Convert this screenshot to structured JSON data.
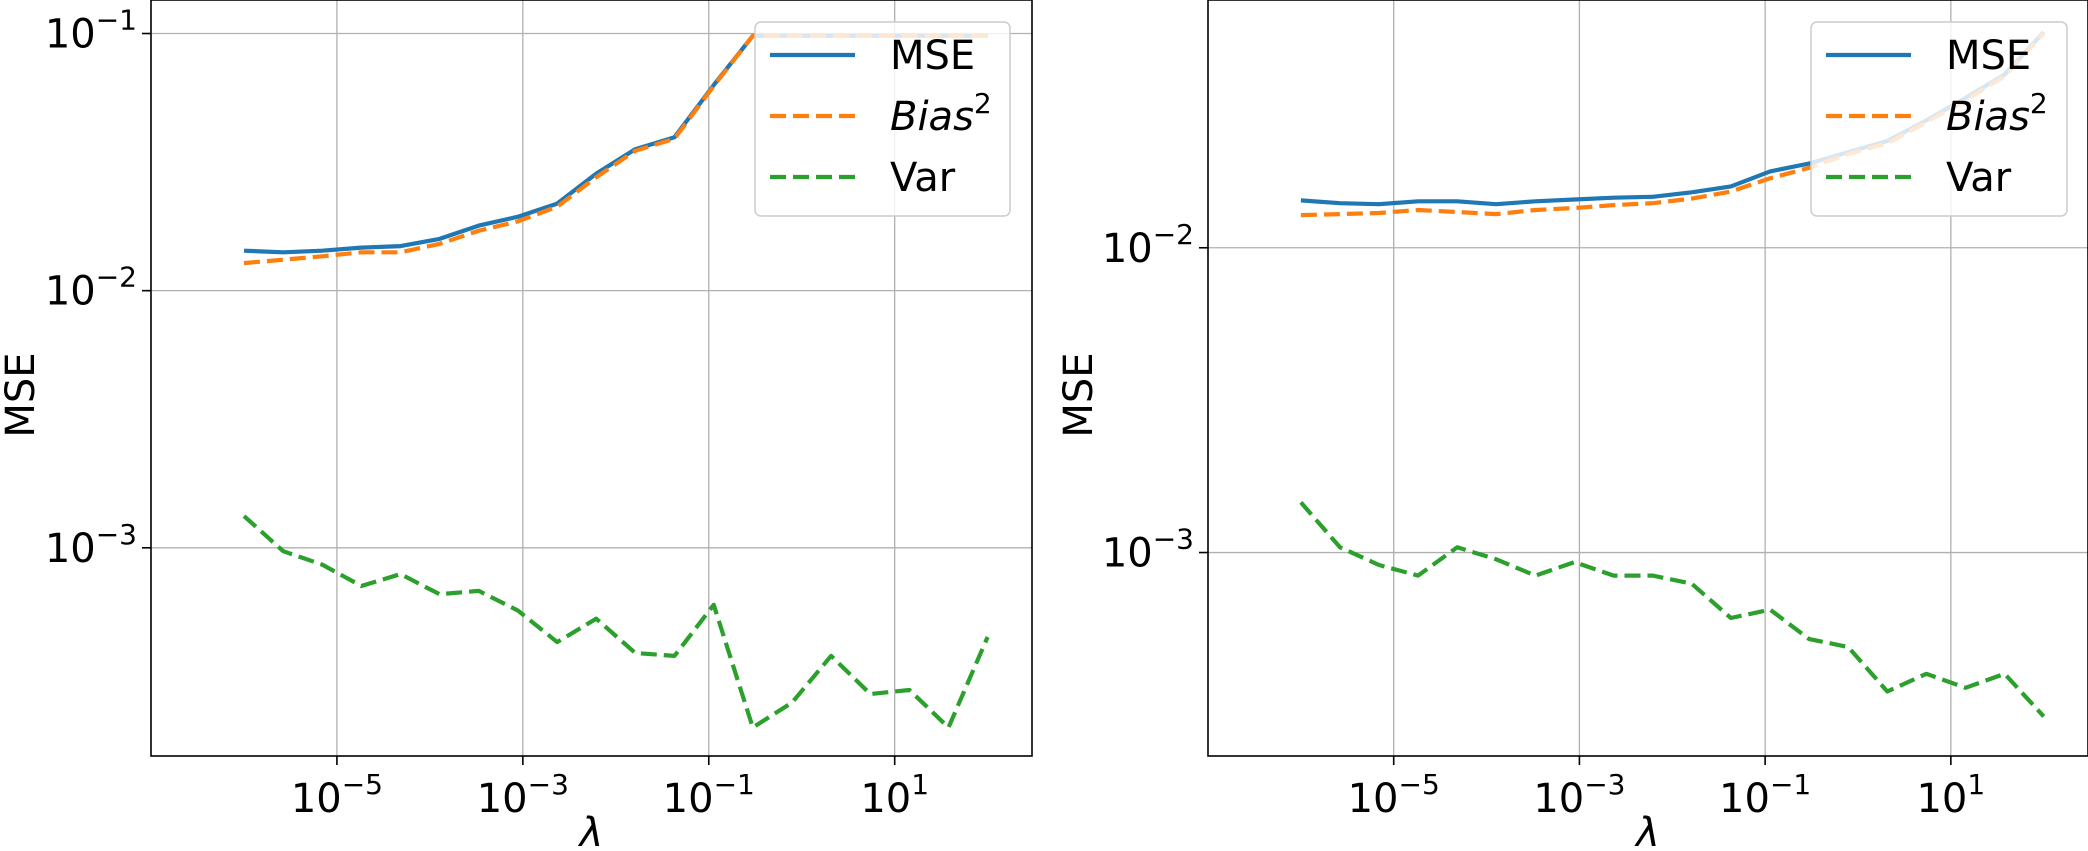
{
  "chart_data": [
    {
      "type": "line",
      "xscale": "log",
      "yscale": "log",
      "xlabel": "λ",
      "ylabel": "MSE",
      "xlim": [
        1e-07,
        300
      ],
      "ylim": [
        0.000155,
        0.135
      ],
      "xticks": [
        {
          "value": 1e-05,
          "base": "10",
          "exp": "−5"
        },
        {
          "value": 0.001,
          "base": "10",
          "exp": "−3"
        },
        {
          "value": 0.1,
          "base": "10",
          "exp": "−1"
        },
        {
          "value": 10,
          "base": "10",
          "exp": "1"
        }
      ],
      "yticks": [
        {
          "value": 0.1,
          "base": "10",
          "exp": "−1"
        },
        {
          "value": 0.01,
          "base": "10",
          "exp": "−2"
        },
        {
          "value": 0.001,
          "base": "10",
          "exp": "−3"
        }
      ],
      "grid": true,
      "legend_position": "upper right",
      "legend": [
        {
          "label": "MSE",
          "sup": ""
        },
        {
          "label": "Bias",
          "sup": "2"
        },
        {
          "label": "Var",
          "sup": ""
        }
      ],
      "x": [
        1e-06,
        2.64e-06,
        6.95e-06,
        1.83e-05,
        4.83e-05,
        0.000127,
        0.000336,
        0.000886,
        0.00234,
        0.00616,
        0.0162,
        0.0428,
        0.113,
        0.298,
        0.785,
        2.07,
        5.46,
        14.4,
        37.9,
        100
      ],
      "series": [
        {
          "name": "MSE",
          "color": "#1f77b4",
          "style": "solid",
          "values": [
            0.0143,
            0.0141,
            0.0143,
            0.0147,
            0.0149,
            0.0159,
            0.0179,
            0.0194,
            0.0218,
            0.0285,
            0.0355,
            0.0395,
            0.063,
            0.098,
            0.098,
            0.098,
            0.098,
            0.098,
            0.098,
            0.098
          ]
        },
        {
          "name": "Bias²",
          "color": "#ff7f0e",
          "style": "dashed",
          "values": [
            0.0128,
            0.0132,
            0.0136,
            0.0141,
            0.0141,
            0.0152,
            0.0171,
            0.0186,
            0.0212,
            0.0276,
            0.035,
            0.039,
            0.0625,
            0.098,
            0.098,
            0.098,
            0.098,
            0.098,
            0.098,
            0.098
          ]
        },
        {
          "name": "Var",
          "color": "#2ca02c",
          "style": "dashed",
          "values": [
            0.00133,
            0.00097,
            0.00086,
            0.00071,
            0.00079,
            0.00066,
            0.00068,
            0.00057,
            0.00043,
            0.00053,
            0.00039,
            0.00038,
            0.0006,
            0.0002,
            0.00025,
            0.00038,
            0.00027,
            0.00028,
            0.0002,
            0.00045
          ]
        }
      ]
    },
    {
      "type": "line",
      "xscale": "log",
      "yscale": "log",
      "xlabel": "λ",
      "ylabel": "MSE",
      "xlim": [
        1e-07,
        300
      ],
      "ylim": [
        0.000215,
        0.065
      ],
      "xticks": [
        {
          "value": 1e-05,
          "base": "10",
          "exp": "−5"
        },
        {
          "value": 0.001,
          "base": "10",
          "exp": "−3"
        },
        {
          "value": 0.1,
          "base": "10",
          "exp": "−1"
        },
        {
          "value": 10,
          "base": "10",
          "exp": "1"
        }
      ],
      "yticks": [
        {
          "value": 0.01,
          "base": "10",
          "exp": "−2"
        },
        {
          "value": 0.001,
          "base": "10",
          "exp": "−3"
        }
      ],
      "grid": true,
      "legend_position": "upper right",
      "legend": [
        {
          "label": "MSE",
          "sup": ""
        },
        {
          "label": "Bias",
          "sup": "2"
        },
        {
          "label": "Var",
          "sup": ""
        }
      ],
      "x": [
        1e-06,
        2.64e-06,
        6.95e-06,
        1.83e-05,
        4.83e-05,
        0.000127,
        0.000336,
        0.000886,
        0.00234,
        0.00616,
        0.0162,
        0.0428,
        0.113,
        0.298,
        0.785,
        2.07,
        5.46,
        14.4,
        37.9,
        100
      ],
      "series": [
        {
          "name": "MSE",
          "color": "#1f77b4",
          "style": "solid",
          "values": [
            0.0143,
            0.014,
            0.0139,
            0.0142,
            0.0142,
            0.0139,
            0.0142,
            0.0144,
            0.0146,
            0.0147,
            0.0152,
            0.0159,
            0.0178,
            0.0189,
            0.0206,
            0.0224,
            0.0262,
            0.031,
            0.037,
            0.051
          ]
        },
        {
          "name": "Bias²",
          "color": "#ff7f0e",
          "style": "dashed",
          "values": [
            0.0128,
            0.0129,
            0.013,
            0.0133,
            0.0131,
            0.0129,
            0.0133,
            0.0135,
            0.0138,
            0.014,
            0.0145,
            0.0153,
            0.0169,
            0.0183,
            0.0203,
            0.022,
            0.0258,
            0.0305,
            0.0365,
            0.0505
          ]
        },
        {
          "name": "Var",
          "color": "#2ca02c",
          "style": "dashed",
          "values": [
            0.00146,
            0.00104,
            0.00091,
            0.00084,
            0.00104,
            0.00095,
            0.00084,
            0.00093,
            0.00084,
            0.00084,
            0.00079,
            0.00061,
            0.00065,
            0.00052,
            0.00049,
            0.00035,
            0.0004,
            0.00036,
            0.0004,
            0.00029
          ]
        }
      ]
    }
  ]
}
